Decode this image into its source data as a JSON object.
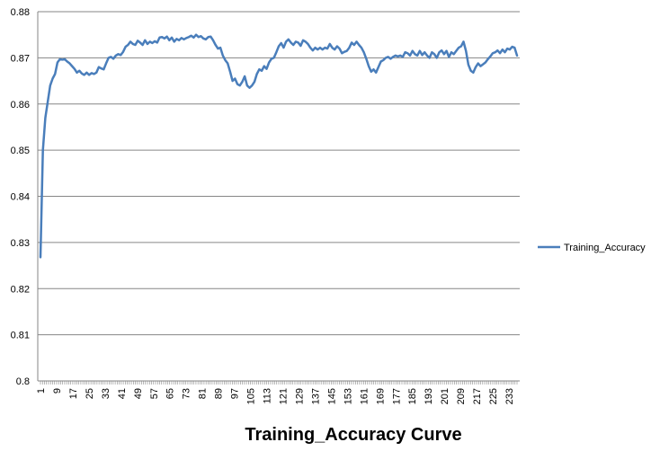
{
  "chart_data": {
    "type": "line",
    "title": "Training_Accuracy Curve",
    "xlabel": "",
    "ylabel": "",
    "ylim": [
      0.8,
      0.88
    ],
    "yticks": [
      0.8,
      0.81,
      0.82,
      0.83,
      0.84,
      0.85,
      0.86,
      0.87,
      0.88
    ],
    "ytick_labels": [
      "0.8",
      "0.81",
      "0.82",
      "0.83",
      "0.84",
      "0.85",
      "0.86",
      "0.87",
      "0.88"
    ],
    "xlim": [
      1,
      237
    ],
    "xticks": [
      1,
      9,
      17,
      25,
      33,
      41,
      49,
      57,
      65,
      73,
      81,
      89,
      97,
      105,
      113,
      121,
      129,
      137,
      145,
      153,
      161,
      169,
      177,
      185,
      193,
      201,
      209,
      217,
      225,
      233
    ],
    "xtick_labels": [
      "1",
      "9",
      "17",
      "25",
      "33",
      "41",
      "49",
      "57",
      "65",
      "73",
      "81",
      "89",
      "97",
      "105",
      "113",
      "121",
      "129",
      "137",
      "145",
      "153",
      "161",
      "169",
      "177",
      "185",
      "193",
      "201",
      "209",
      "217",
      "225",
      "233"
    ],
    "grid": "horizontal",
    "legend_position": "right",
    "series": [
      {
        "name": "Training_Accuracy",
        "color": "#4a7ebb",
        "keypoints": [
          [
            1,
            0.8268
          ],
          [
            2,
            0.85
          ],
          [
            3,
            0.857
          ],
          [
            4,
            0.8605
          ],
          [
            5,
            0.864
          ],
          [
            6,
            0.8655
          ],
          [
            7,
            0.8665
          ],
          [
            8,
            0.869
          ],
          [
            9,
            0.8697
          ],
          [
            10,
            0.8696
          ],
          [
            11,
            0.8697
          ],
          [
            12,
            0.8692
          ],
          [
            13,
            0.8688
          ],
          [
            14,
            0.8682
          ],
          [
            15,
            0.8676
          ],
          [
            16,
            0.8668
          ],
          [
            17,
            0.8672
          ],
          [
            18,
            0.8666
          ],
          [
            19,
            0.8663
          ],
          [
            20,
            0.8668
          ],
          [
            21,
            0.8663
          ],
          [
            22,
            0.8667
          ],
          [
            23,
            0.8665
          ],
          [
            24,
            0.8668
          ],
          [
            25,
            0.868
          ],
          [
            26,
            0.8677
          ],
          [
            27,
            0.8675
          ],
          [
            28,
            0.8688
          ],
          [
            29,
            0.87
          ],
          [
            30,
            0.8702
          ],
          [
            31,
            0.8698
          ],
          [
            32,
            0.8705
          ],
          [
            33,
            0.8708
          ],
          [
            34,
            0.8706
          ],
          [
            35,
            0.8713
          ],
          [
            36,
            0.8724
          ],
          [
            37,
            0.8728
          ],
          [
            38,
            0.8735
          ],
          [
            39,
            0.873
          ],
          [
            40,
            0.8728
          ],
          [
            41,
            0.8737
          ],
          [
            42,
            0.8733
          ],
          [
            43,
            0.8728
          ],
          [
            44,
            0.8738
          ],
          [
            45,
            0.873
          ],
          [
            46,
            0.8735
          ],
          [
            47,
            0.8732
          ],
          [
            48,
            0.8736
          ],
          [
            49,
            0.8733
          ],
          [
            50,
            0.8744
          ],
          [
            51,
            0.8745
          ],
          [
            52,
            0.8742
          ],
          [
            53,
            0.8746
          ],
          [
            54,
            0.8738
          ],
          [
            55,
            0.8744
          ],
          [
            56,
            0.8735
          ],
          [
            57,
            0.8741
          ],
          [
            58,
            0.8738
          ],
          [
            59,
            0.8743
          ],
          [
            60,
            0.874
          ],
          [
            61,
            0.8743
          ],
          [
            62,
            0.8745
          ],
          [
            63,
            0.8748
          ],
          [
            64,
            0.8744
          ],
          [
            65,
            0.875
          ],
          [
            66,
            0.8745
          ],
          [
            67,
            0.8747
          ],
          [
            68,
            0.8742
          ],
          [
            69,
            0.874
          ],
          [
            70,
            0.8745
          ],
          [
            71,
            0.8746
          ],
          [
            72,
            0.8738
          ],
          [
            73,
            0.8728
          ],
          [
            74,
            0.872
          ],
          [
            75,
            0.8722
          ],
          [
            76,
            0.8705
          ],
          [
            77,
            0.8695
          ],
          [
            78,
            0.8688
          ],
          [
            79,
            0.867
          ],
          [
            80,
            0.865
          ],
          [
            81,
            0.8655
          ],
          [
            82,
            0.8643
          ],
          [
            83,
            0.864
          ],
          [
            84,
            0.8648
          ],
          [
            85,
            0.866
          ],
          [
            86,
            0.864
          ],
          [
            87,
            0.8635
          ],
          [
            88,
            0.864
          ],
          [
            89,
            0.8648
          ],
          [
            90,
            0.8665
          ],
          [
            91,
            0.8675
          ],
          [
            92,
            0.8672
          ],
          [
            93,
            0.8682
          ],
          [
            94,
            0.8676
          ],
          [
            95,
            0.869
          ],
          [
            96,
            0.8698
          ],
          [
            97,
            0.87
          ],
          [
            98,
            0.8712
          ],
          [
            99,
            0.8725
          ],
          [
            100,
            0.8732
          ],
          [
            101,
            0.8722
          ],
          [
            102,
            0.8735
          ],
          [
            103,
            0.874
          ],
          [
            104,
            0.8733
          ],
          [
            105,
            0.8728
          ],
          [
            106,
            0.8735
          ],
          [
            107,
            0.8733
          ],
          [
            108,
            0.8726
          ],
          [
            109,
            0.8738
          ],
          [
            110,
            0.8735
          ],
          [
            111,
            0.873
          ],
          [
            112,
            0.8722
          ],
          [
            113,
            0.8716
          ],
          [
            114,
            0.8722
          ],
          [
            115,
            0.8718
          ],
          [
            116,
            0.8722
          ],
          [
            117,
            0.8718
          ],
          [
            118,
            0.8722
          ],
          [
            119,
            0.872
          ],
          [
            120,
            0.873
          ],
          [
            121,
            0.8722
          ],
          [
            122,
            0.8718
          ],
          [
            123,
            0.8725
          ],
          [
            124,
            0.872
          ],
          [
            125,
            0.871
          ],
          [
            126,
            0.8713
          ],
          [
            127,
            0.8715
          ],
          [
            128,
            0.8722
          ],
          [
            129,
            0.8733
          ],
          [
            130,
            0.8728
          ],
          [
            131,
            0.8735
          ],
          [
            132,
            0.8728
          ],
          [
            133,
            0.8722
          ],
          [
            134,
            0.8712
          ],
          [
            135,
            0.8698
          ],
          [
            136,
            0.8682
          ],
          [
            137,
            0.867
          ],
          [
            138,
            0.8675
          ],
          [
            139,
            0.8668
          ],
          [
            140,
            0.868
          ],
          [
            141,
            0.8692
          ],
          [
            142,
            0.8695
          ],
          [
            143,
            0.87
          ],
          [
            144,
            0.8702
          ],
          [
            145,
            0.8698
          ],
          [
            146,
            0.8702
          ],
          [
            147,
            0.8705
          ],
          [
            148,
            0.8703
          ],
          [
            149,
            0.8705
          ],
          [
            150,
            0.8702
          ],
          [
            151,
            0.8712
          ],
          [
            152,
            0.871
          ],
          [
            153,
            0.8705
          ],
          [
            154,
            0.8715
          ],
          [
            155,
            0.8708
          ],
          [
            156,
            0.8705
          ],
          [
            157,
            0.8715
          ],
          [
            158,
            0.8706
          ],
          [
            159,
            0.8712
          ],
          [
            160,
            0.8705
          ],
          [
            161,
            0.87
          ],
          [
            162,
            0.8712
          ],
          [
            163,
            0.8708
          ],
          [
            164,
            0.87
          ],
          [
            165,
            0.8712
          ],
          [
            166,
            0.8716
          ],
          [
            167,
            0.8708
          ],
          [
            168,
            0.8715
          ],
          [
            169,
            0.8702
          ],
          [
            170,
            0.8712
          ],
          [
            171,
            0.8708
          ],
          [
            172,
            0.8715
          ],
          [
            173,
            0.8722
          ],
          [
            174,
            0.8725
          ],
          [
            175,
            0.8735
          ],
          [
            176,
            0.8715
          ],
          [
            177,
            0.8685
          ],
          [
            178,
            0.8672
          ],
          [
            179,
            0.8668
          ],
          [
            180,
            0.868
          ],
          [
            181,
            0.8688
          ],
          [
            182,
            0.8682
          ],
          [
            183,
            0.8686
          ],
          [
            184,
            0.869
          ],
          [
            185,
            0.8697
          ],
          [
            186,
            0.8703
          ],
          [
            187,
            0.871
          ],
          [
            188,
            0.8712
          ],
          [
            189,
            0.8716
          ],
          [
            190,
            0.871
          ],
          [
            191,
            0.8718
          ],
          [
            192,
            0.8712
          ],
          [
            193,
            0.872
          ],
          [
            194,
            0.8718
          ],
          [
            195,
            0.8724
          ],
          [
            196,
            0.8722
          ],
          [
            197,
            0.8705
          ]
        ]
      }
    ]
  },
  "legend": {
    "label": "Training_Accuracy"
  }
}
